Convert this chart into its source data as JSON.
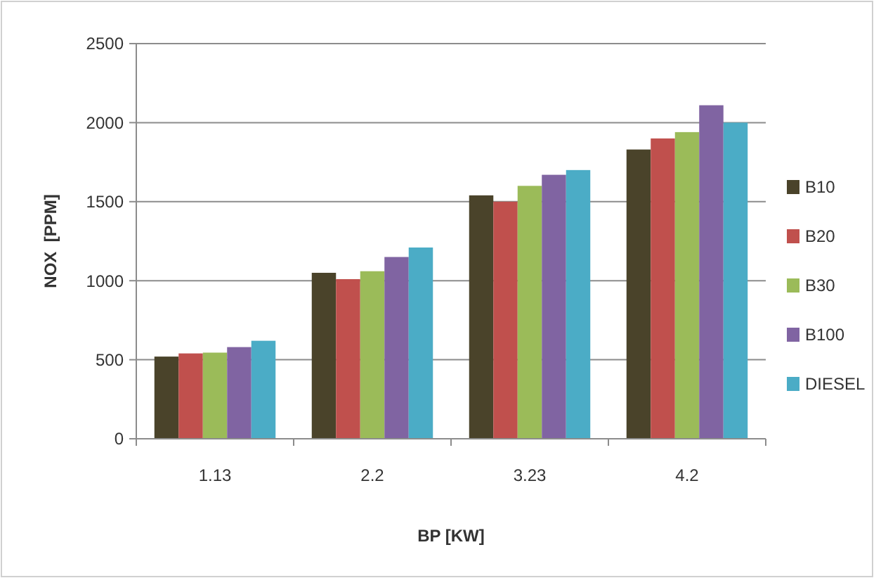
{
  "chart_data": {
    "type": "bar",
    "xlabel": "BP [KW]",
    "ylabel": "NOX  [PPM]",
    "categories": [
      "1.13",
      "2.2",
      "3.23",
      "4.2"
    ],
    "series": [
      {
        "name": "B10",
        "color": "#4a432a",
        "values": [
          520,
          1050,
          1540,
          1830
        ]
      },
      {
        "name": "B20",
        "color": "#c0504d",
        "values": [
          540,
          1010,
          1500,
          1900
        ]
      },
      {
        "name": "B30",
        "color": "#9bbb59",
        "values": [
          545,
          1060,
          1600,
          1940
        ]
      },
      {
        "name": "B100",
        "color": "#8064a2",
        "values": [
          580,
          1150,
          1670,
          2110
        ]
      },
      {
        "name": "DIESEL",
        "color": "#4bacc6",
        "values": [
          620,
          1210,
          1700,
          2000
        ]
      }
    ],
    "ylim": [
      0,
      2500
    ],
    "yticks": [
      0,
      500,
      1000,
      1500,
      2000,
      2500
    ],
    "grid": "y",
    "legend": "right"
  }
}
